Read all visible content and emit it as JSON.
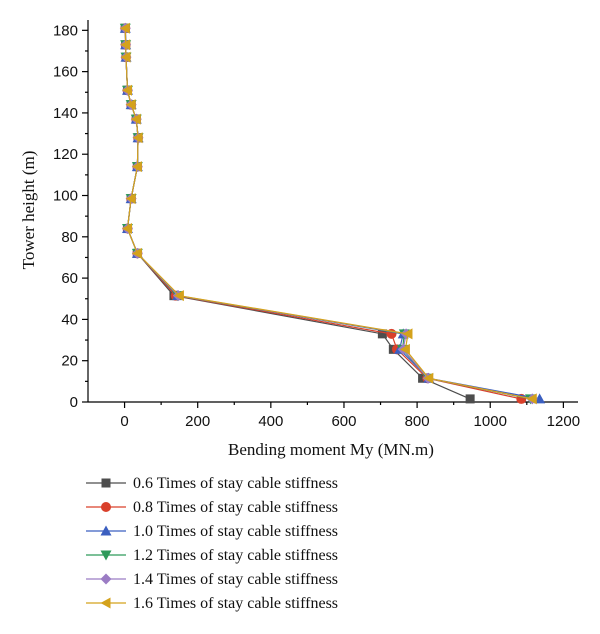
{
  "chart_data": {
    "type": "line",
    "xlabel": "Bending moment My (MN.m)",
    "ylabel": "Tower height (m)",
    "xlim": [
      -100,
      1240
    ],
    "ylim": [
      0,
      185
    ],
    "xticks": [
      0,
      200,
      400,
      600,
      800,
      1000,
      1200
    ],
    "yticks": [
      0,
      20,
      40,
      60,
      80,
      100,
      120,
      140,
      160,
      180
    ],
    "legend_position": "bottom",
    "grid": false,
    "y": [
      1.5,
      11.5,
      25.5,
      33,
      51.5,
      72,
      84,
      98.5,
      114,
      128,
      137,
      144,
      151,
      167,
      173,
      181
    ],
    "series": [
      {
        "name": "0.6 Times of stay cable stiffness",
        "color": "#4d4d4d",
        "marker": "square",
        "x": [
          945,
          815,
          735,
          705,
          135,
          35,
          8,
          18,
          35,
          37,
          32,
          18,
          8,
          4,
          3,
          2
        ]
      },
      {
        "name": "0.8 Times of stay cable stiffness",
        "color": "#d9402b",
        "marker": "circle",
        "x": [
          1085,
          828,
          745,
          730,
          140,
          35,
          8,
          18,
          35,
          37,
          32,
          18,
          8,
          4,
          3,
          2
        ]
      },
      {
        "name": "1.0 Times of stay cable stiffness",
        "color": "#3b5fc0",
        "marker": "triangle-up",
        "x": [
          1135,
          832,
          752,
          762,
          145,
          35,
          8,
          18,
          35,
          37,
          32,
          18,
          8,
          4,
          3,
          2
        ]
      },
      {
        "name": "1.2 Times of stay cable stiffness",
        "color": "#2e9a5a",
        "marker": "triangle-down",
        "x": [
          1110,
          830,
          760,
          765,
          145,
          35,
          8,
          18,
          35,
          37,
          32,
          18,
          8,
          4,
          3,
          2
        ]
      },
      {
        "name": "1.4 Times of stay cable stiffness",
        "color": "#9b7cc4",
        "marker": "diamond",
        "x": [
          1115,
          830,
          762,
          770,
          147,
          35,
          8,
          18,
          35,
          37,
          32,
          18,
          8,
          4,
          3,
          2
        ]
      },
      {
        "name": "1.6 Times of stay cable stiffness",
        "color": "#d4a21c",
        "marker": "triangle-left",
        "x": [
          1115,
          832,
          768,
          775,
          150,
          35,
          8,
          18,
          35,
          37,
          32,
          18,
          8,
          4,
          3,
          2
        ]
      }
    ]
  }
}
